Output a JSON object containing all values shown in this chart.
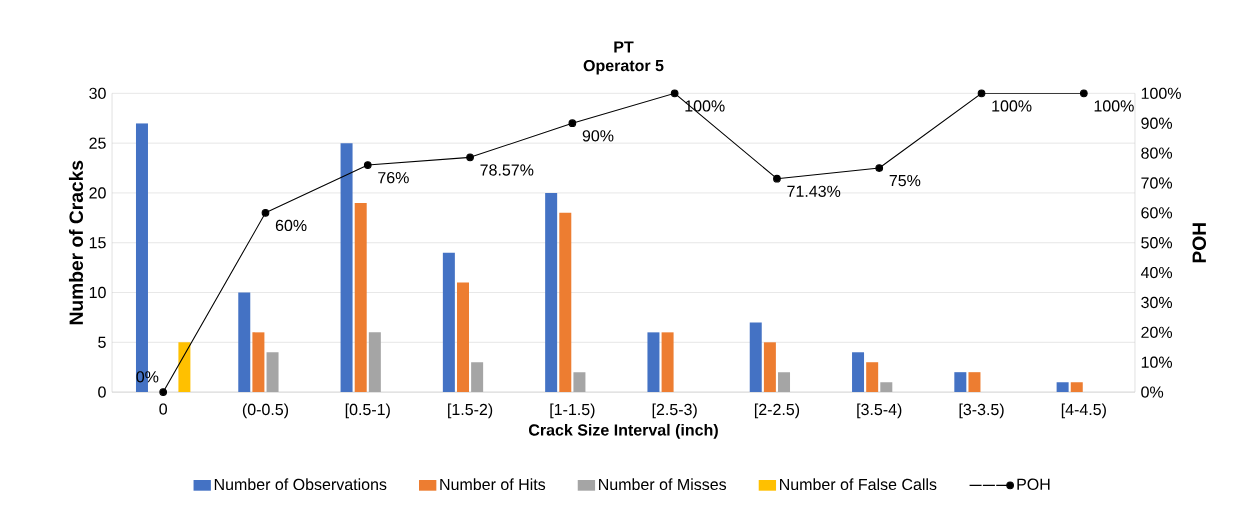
{
  "chart_data": {
    "type": "bar",
    "title": "PT",
    "subtitle": "Operator 5",
    "xlabel": "Crack Size Interval (inch)",
    "ylabel": "Number of Cracks",
    "y2label": "POH",
    "categories": [
      "0",
      "(0-0.5)",
      "[0.5-1)",
      "[1.5-2)",
      "[1-1.5)",
      "[2.5-3)",
      "[2-2.5)",
      "[3.5-4)",
      "[3-3.5)",
      "[4-4.5)"
    ],
    "series": [
      {
        "name": "Number of Observations",
        "color": "#4472c4",
        "values": [
          27,
          10,
          25,
          14,
          20,
          6,
          7,
          4,
          2,
          1
        ]
      },
      {
        "name": "Number of Hits",
        "color": "#ed7d31",
        "values": [
          0,
          6,
          19,
          11,
          18,
          6,
          5,
          3,
          2,
          1
        ]
      },
      {
        "name": "Number of Misses",
        "color": "#a5a5a5",
        "values": [
          0,
          4,
          6,
          3,
          2,
          0,
          2,
          1,
          0,
          0
        ]
      },
      {
        "name": "Number of False Calls",
        "color": "#ffc000",
        "values": [
          5,
          0,
          0,
          0,
          0,
          0,
          0,
          0,
          0,
          0
        ]
      },
      {
        "name": "POH",
        "type": "line",
        "axis": "y2",
        "color": "#000000",
        "marker": "circle",
        "line_style": "solid",
        "values": [
          0,
          60,
          76,
          78.57,
          90,
          100,
          71.43,
          75,
          100,
          100
        ],
        "value_labels": [
          "0%",
          "60%",
          "76%",
          "78.57%",
          "90%",
          "100%",
          "71.43%",
          "75%",
          "100%",
          "100%"
        ]
      }
    ],
    "ylim": [
      0,
      30
    ],
    "yticks": [
      0,
      5,
      10,
      15,
      20,
      25,
      30
    ],
    "y2lim": [
      0,
      100
    ],
    "y2ticks": [
      {
        "value": 0,
        "label": "0%"
      },
      {
        "value": 10,
        "label": "10%"
      },
      {
        "value": 20,
        "label": "20%"
      },
      {
        "value": 30,
        "label": "30%"
      },
      {
        "value": 40,
        "label": "40%"
      },
      {
        "value": 50,
        "label": "50%"
      },
      {
        "value": 60,
        "label": "60%"
      },
      {
        "value": 70,
        "label": "70%"
      },
      {
        "value": 80,
        "label": "80%"
      },
      {
        "value": 90,
        "label": "90%"
      },
      {
        "value": 100,
        "label": "100%"
      }
    ],
    "grid": "y",
    "legend": "bottom"
  }
}
